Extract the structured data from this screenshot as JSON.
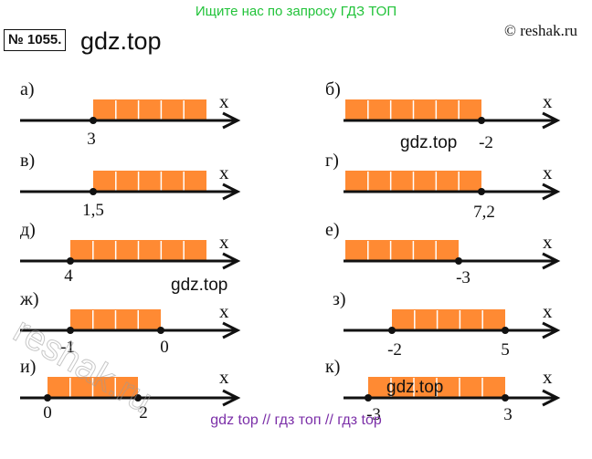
{
  "banner": "Ищите нас по запросу ГДЗ ТОП",
  "copyright": "© reshak.ru",
  "task_number": "№ 1055.",
  "title": "gdz.top",
  "watermarks": [
    "gdz.top",
    "gdz.top",
    "gdz.top"
  ],
  "corner_watermark": "reshak.ru",
  "axis_name": "x",
  "footer": "gdz top  //  гдз топ  //  гдз top",
  "colors": {
    "fill": "#ff8a33",
    "axis": "#111111",
    "banner": "#22c33a",
    "footer": "#7b2fa8"
  },
  "number_lines": [
    {
      "label": "а)",
      "point_labels": [
        "3"
      ]
    },
    {
      "label": "б)",
      "point_labels": [
        "-2"
      ]
    },
    {
      "label": "в)",
      "point_labels": [
        "1,5"
      ]
    },
    {
      "label": "г)",
      "point_labels": [
        "7,2"
      ]
    },
    {
      "label": "д)",
      "point_labels": [
        "4"
      ]
    },
    {
      "label": "е)",
      "point_labels": [
        "-3"
      ]
    },
    {
      "label": "ж)",
      "point_labels": [
        "-1",
        "0"
      ]
    },
    {
      "label": "з)",
      "point_labels": [
        "-2",
        "5"
      ]
    },
    {
      "label": "и)",
      "point_labels": [
        "0",
        "2"
      ]
    },
    {
      "label": "к)",
      "point_labels": [
        "-3",
        "3"
      ]
    }
  ]
}
